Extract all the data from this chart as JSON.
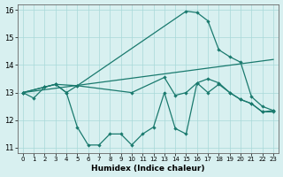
{
  "xlabel": "Humidex (Indice chaleur)",
  "background_color": "#d8f0f0",
  "line_color": "#1a7a6e",
  "grid_color": "#a8d8d8",
  "xlim": [
    -0.5,
    23.5
  ],
  "ylim": [
    10.8,
    16.2
  ],
  "xticks": [
    0,
    1,
    2,
    3,
    4,
    5,
    6,
    7,
    8,
    9,
    10,
    11,
    12,
    13,
    14,
    15,
    16,
    17,
    18,
    19,
    20,
    21,
    22,
    23
  ],
  "yticks": [
    11,
    12,
    13,
    14,
    15,
    16
  ],
  "series": [
    {
      "x": [
        0,
        1,
        2,
        3,
        4,
        5,
        6,
        7,
        8,
        9,
        10,
        11,
        12,
        13,
        14,
        15,
        16,
        17,
        18,
        19,
        20,
        21,
        22,
        23
      ],
      "y": [
        13.0,
        12.8,
        13.2,
        13.3,
        13.0,
        11.75,
        11.1,
        11.1,
        11.5,
        11.5,
        11.1,
        11.5,
        11.75,
        13.0,
        11.7,
        11.5,
        13.35,
        13.0,
        13.3,
        13.0,
        12.75,
        12.6,
        12.3,
        12.3
      ]
    },
    {
      "x": [
        0,
        2,
        3,
        4,
        5,
        15,
        16,
        17,
        18,
        19,
        20,
        21,
        22,
        23
      ],
      "y": [
        13.0,
        13.2,
        13.3,
        13.0,
        13.25,
        15.95,
        15.9,
        15.6,
        14.55,
        14.3,
        14.1,
        12.85,
        12.5,
        12.35
      ]
    },
    {
      "x": [
        0,
        2,
        3,
        5,
        10,
        13,
        14,
        15,
        16,
        17,
        18,
        19,
        20,
        21,
        22,
        23
      ],
      "y": [
        13.0,
        13.2,
        13.3,
        13.25,
        13.0,
        13.55,
        12.9,
        13.0,
        13.35,
        13.5,
        13.35,
        13.0,
        12.75,
        12.6,
        12.3,
        12.35
      ]
    },
    {
      "x": [
        0,
        23
      ],
      "y": [
        13.0,
        14.2
      ]
    }
  ]
}
